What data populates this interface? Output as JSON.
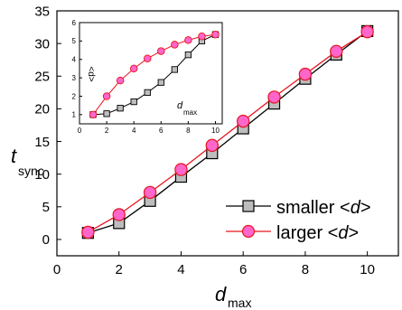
{
  "chart_data": [
    {
      "type": "line",
      "xlabel": "d",
      "xlabel_sub": "max",
      "ylabel": "t",
      "ylabel_sub": "sync",
      "xlim": [
        0,
        11
      ],
      "ylim": [
        -2.5,
        35
      ],
      "xticks": [
        0,
        2,
        4,
        6,
        8,
        10
      ],
      "yticks": [
        0,
        5,
        10,
        15,
        20,
        25,
        30,
        35
      ],
      "xtick_labels": [
        "0",
        "2",
        "4",
        "6",
        "8",
        "10"
      ],
      "ytick_labels": [
        "0",
        "5",
        "10",
        "15",
        "20",
        "25",
        "30",
        "35"
      ],
      "legend_position": "lower-right",
      "x": [
        1,
        2,
        3,
        4,
        5,
        6,
        7,
        8,
        9,
        10
      ],
      "series": [
        {
          "name": "smaller <d>",
          "name_parts": [
            "smaller <",
            "d",
            ">"
          ],
          "values": [
            1.0,
            2.5,
            5.9,
            9.6,
            13.2,
            17.0,
            20.8,
            24.6,
            28.3,
            31.9
          ],
          "marker": "square",
          "marker_color": "#bdbdbd",
          "line_color": "#000000"
        },
        {
          "name": "larger <d>",
          "name_parts": [
            "larger <",
            "d",
            ">"
          ],
          "values": [
            1.1,
            3.8,
            7.2,
            10.7,
            14.4,
            18.1,
            21.8,
            25.3,
            28.8,
            31.8
          ],
          "marker": "circle",
          "marker_color": "#ff66cc",
          "line_color": "#e8141e"
        }
      ]
    },
    {
      "type": "line",
      "inset": true,
      "xlabel": "d",
      "xlabel_sub": "max",
      "ylabel": "<d>",
      "xlim": [
        0,
        10.5
      ],
      "ylim": [
        0.5,
        6
      ],
      "xticks": [
        0,
        2,
        4,
        6,
        8,
        10
      ],
      "yticks": [
        1,
        2,
        3,
        4,
        5,
        6
      ],
      "xtick_labels": [
        "0",
        "2",
        "4",
        "6",
        "8",
        "10"
      ],
      "ytick_labels": [
        "1",
        "2",
        "3",
        "4",
        "5",
        "6"
      ],
      "x": [
        1,
        2,
        3,
        4,
        5,
        6,
        7,
        8,
        9,
        10
      ],
      "series": [
        {
          "name": "smaller <d>",
          "values": [
            1.0,
            1.05,
            1.35,
            1.7,
            2.2,
            2.75,
            3.45,
            4.25,
            5.0,
            5.35
          ],
          "marker": "square",
          "marker_color": "#bdbdbd",
          "line_color": "#000000"
        },
        {
          "name": "larger <d>",
          "values": [
            1.0,
            2.0,
            2.85,
            3.5,
            4.05,
            4.45,
            4.8,
            5.05,
            5.25,
            5.35
          ],
          "marker": "circle",
          "marker_color": "#ff66cc",
          "line_color": "#e8141e"
        }
      ]
    }
  ]
}
